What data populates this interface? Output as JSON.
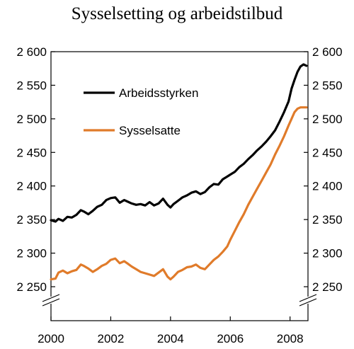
{
  "chart_data": {
    "type": "line",
    "title": "Sysselsetting og arbeidstilbud",
    "xlabel": "",
    "ylabel": "",
    "x_ticks": [
      "2000",
      "2002",
      "2004",
      "2006",
      "2008"
    ],
    "y_ticks": [
      "2 600",
      "2 550",
      "2 500",
      "2 450",
      "2 400",
      "2 350",
      "2 300",
      "2 250"
    ],
    "xlim": [
      2000,
      2008.6
    ],
    "ylim": [
      2240,
      2600
    ],
    "axis_break": true,
    "grid": false,
    "legend_position": "upper-left",
    "series": [
      {
        "name": "Arbeidsstyrken",
        "color": "#000000",
        "x": [
          2000.0,
          2000.15,
          2000.25,
          2000.4,
          2000.55,
          2000.7,
          2000.85,
          2001.0,
          2001.1,
          2001.25,
          2001.4,
          2001.55,
          2001.7,
          2001.85,
          2002.0,
          2002.15,
          2002.3,
          2002.45,
          2002.55,
          2002.7,
          2002.85,
          2003.0,
          2003.15,
          2003.3,
          2003.45,
          2003.6,
          2003.75,
          2003.9,
          2004.0,
          2004.1,
          2004.25,
          2004.4,
          2004.55,
          2004.7,
          2004.85,
          2005.0,
          2005.15,
          2005.3,
          2005.45,
          2005.6,
          2005.75,
          2005.9,
          2006.0,
          2006.15,
          2006.3,
          2006.45,
          2006.6,
          2006.75,
          2006.9,
          2007.05,
          2007.2,
          2007.35,
          2007.5,
          2007.65,
          2007.8,
          2007.95,
          2008.05,
          2008.15,
          2008.25,
          2008.35,
          2008.45,
          2008.55
        ],
        "values": [
          2349,
          2347,
          2351,
          2348,
          2354,
          2353,
          2357,
          2364,
          2362,
          2358,
          2363,
          2369,
          2372,
          2379,
          2382,
          2383,
          2375,
          2379,
          2377,
          2374,
          2372,
          2373,
          2371,
          2376,
          2371,
          2374,
          2381,
          2372,
          2368,
          2373,
          2378,
          2383,
          2386,
          2390,
          2392,
          2388,
          2391,
          2398,
          2403,
          2402,
          2410,
          2414,
          2417,
          2421,
          2428,
          2433,
          2440,
          2446,
          2453,
          2459,
          2466,
          2474,
          2483,
          2496,
          2510,
          2526,
          2545,
          2558,
          2570,
          2578,
          2581,
          2579
        ]
      },
      {
        "name": "Sysselsatte",
        "color": "#e07b2a",
        "x": [
          2000.0,
          2000.15,
          2000.25,
          2000.4,
          2000.55,
          2000.7,
          2000.85,
          2001.0,
          2001.1,
          2001.25,
          2001.4,
          2001.55,
          2001.7,
          2001.85,
          2002.0,
          2002.15,
          2002.3,
          2002.45,
          2002.55,
          2002.7,
          2002.85,
          2003.0,
          2003.15,
          2003.3,
          2003.45,
          2003.6,
          2003.75,
          2003.9,
          2004.0,
          2004.1,
          2004.25,
          2004.4,
          2004.55,
          2004.7,
          2004.85,
          2005.0,
          2005.15,
          2005.3,
          2005.45,
          2005.6,
          2005.75,
          2005.9,
          2006.0,
          2006.15,
          2006.3,
          2006.45,
          2006.6,
          2006.75,
          2006.9,
          2007.05,
          2007.2,
          2007.35,
          2007.5,
          2007.65,
          2007.8,
          2007.95,
          2008.05,
          2008.15,
          2008.25,
          2008.35,
          2008.45,
          2008.55
        ],
        "values": [
          2261,
          2262,
          2271,
          2274,
          2270,
          2273,
          2275,
          2283,
          2281,
          2277,
          2272,
          2276,
          2281,
          2284,
          2290,
          2292,
          2285,
          2288,
          2285,
          2280,
          2276,
          2272,
          2270,
          2268,
          2266,
          2271,
          2276,
          2265,
          2261,
          2265,
          2272,
          2275,
          2279,
          2280,
          2283,
          2278,
          2276,
          2283,
          2290,
          2295,
          2302,
          2310,
          2320,
          2333,
          2346,
          2358,
          2372,
          2384,
          2396,
          2408,
          2420,
          2432,
          2447,
          2460,
          2474,
          2490,
          2500,
          2510,
          2515,
          2517,
          2517,
          2517
        ]
      }
    ]
  }
}
